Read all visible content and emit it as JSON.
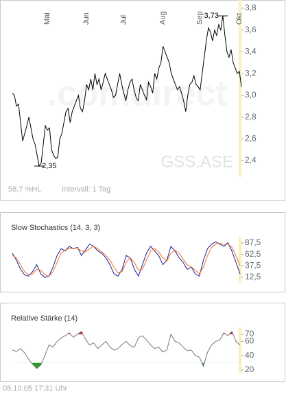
{
  "chart_data": [
    {
      "type": "line",
      "title": "GSS.ASE",
      "watermark": ".comdirect",
      "color": "#000000",
      "categories": [
        null,
        null,
        null,
        null,
        null,
        null,
        null,
        null,
        null,
        null,
        null,
        null,
        null,
        null,
        null,
        null,
        null,
        "Mai",
        null,
        null,
        null,
        null,
        null,
        null,
        null,
        null,
        null,
        null,
        null,
        null,
        null,
        null,
        null,
        null,
        null,
        null,
        "Jun",
        null,
        null,
        null,
        null,
        null,
        null,
        null,
        null,
        null,
        null,
        null,
        null,
        null,
        null,
        null,
        null,
        null,
        "Jul",
        null,
        null,
        null,
        null,
        null,
        null,
        null,
        null,
        null,
        null,
        null,
        null,
        null,
        null,
        null,
        null,
        null,
        null,
        "Aug",
        null,
        null,
        null,
        null,
        null,
        null,
        null,
        null,
        null,
        null,
        null,
        null,
        null,
        null,
        null,
        null,
        null,
        "Sep",
        null,
        null,
        null,
        null,
        null,
        null,
        null,
        null,
        null,
        null,
        null,
        null,
        null,
        null,
        null,
        null,
        null,
        null,
        "Okt",
        null
      ],
      "values": [
        3.02,
        3.0,
        2.9,
        2.92,
        2.75,
        2.58,
        2.65,
        2.72,
        2.8,
        2.7,
        2.6,
        2.55,
        2.45,
        2.35,
        2.38,
        2.55,
        2.72,
        2.68,
        2.7,
        2.5,
        2.45,
        2.42,
        2.43,
        2.6,
        2.65,
        2.75,
        2.85,
        2.88,
        2.75,
        2.85,
        2.9,
        2.95,
        3.0,
        2.88,
        2.85,
        2.95,
        3.1,
        3.05,
        3.15,
        3.05,
        3.2,
        3.1,
        3.15,
        3.05,
        3.12,
        3.2,
        3.15,
        3.1,
        3.05,
        2.98,
        3.0,
        3.1,
        3.2,
        3.1,
        3.02,
        2.95,
        3.05,
        3.12,
        3.15,
        3.05,
        2.98,
        2.95,
        3.1,
        3.05,
        3.0,
        2.96,
        3.12,
        3.08,
        3.02,
        3.2,
        3.15,
        3.25,
        3.3,
        3.45,
        3.4,
        3.35,
        3.3,
        3.2,
        3.15,
        3.1,
        3.05,
        3.08,
        3.02,
        2.95,
        2.85,
        3.0,
        3.1,
        3.12,
        3.18,
        3.1,
        3.08,
        3.05,
        3.2,
        3.35,
        3.5,
        3.62,
        3.58,
        3.5,
        3.6,
        3.55,
        3.65,
        3.6,
        3.73,
        3.55,
        3.4,
        3.35,
        3.42,
        3.3,
        3.25,
        3.2,
        3.22,
        3.08
      ],
      "annotations": [
        {
          "label": "3,73",
          "value": 3.73
        },
        {
          "label": "2,35",
          "value": 2.35
        }
      ],
      "ylim": [
        2.25,
        3.8
      ],
      "yticks": [
        {
          "value": 2.4,
          "label": "2,4"
        },
        {
          "value": 2.6,
          "label": "2,6"
        },
        {
          "value": 2.8,
          "label": "2,8"
        },
        {
          "value": 3.0,
          "label": "3,0"
        },
        {
          "value": 3.2,
          "label": "3,2"
        },
        {
          "value": 3.4,
          "label": "3,4"
        },
        {
          "value": 3.6,
          "label": "3,6"
        },
        {
          "value": 3.8,
          "label": "3,8"
        }
      ],
      "footer": [
        "58,7 %HL",
        "Intervall: 1 Tag"
      ],
      "grid": false
    },
    {
      "type": "line",
      "title": "Slow Stochastics (14, 3, 3)",
      "series": [
        {
          "color": "#1a1aa0",
          "values": [
            65,
            50,
            30,
            18,
            15,
            25,
            40,
            20,
            12,
            15,
            35,
            60,
            75,
            70,
            80,
            75,
            78,
            60,
            72,
            85,
            80,
            70,
            65,
            55,
            40,
            20,
            15,
            30,
            60,
            55,
            30,
            15,
            40,
            65,
            80,
            70,
            60,
            40,
            50,
            80,
            70,
            55,
            45,
            30,
            35,
            20,
            15,
            50,
            75,
            85,
            90,
            85,
            80,
            88,
            70,
            45,
            20
          ]
        },
        {
          "color": "#f07020",
          "values": [
            60,
            55,
            40,
            25,
            18,
            20,
            30,
            28,
            18,
            15,
            25,
            45,
            65,
            72,
            75,
            76,
            76,
            70,
            68,
            75,
            80,
            75,
            68,
            60,
            50,
            35,
            22,
            25,
            45,
            55,
            45,
            28,
            30,
            50,
            70,
            75,
            68,
            55,
            48,
            65,
            72,
            65,
            52,
            40,
            35,
            28,
            20,
            35,
            60,
            78,
            85,
            87,
            84,
            85,
            78,
            60,
            38
          ]
        }
      ],
      "ylim": [
        0,
        100
      ],
      "yticks": [
        {
          "value": 12.5,
          "label": "12,5"
        },
        {
          "value": 37.5,
          "label": "37,5"
        },
        {
          "value": 62.5,
          "label": "62,5"
        },
        {
          "value": 87.5,
          "label": "87,5"
        }
      ]
    },
    {
      "type": "rsi",
      "title": "Relative Stärke (14)",
      "color": "#777777",
      "thresholds": [
        30,
        70
      ],
      "fill_colors": [
        "#2a9a2a",
        "#d02020"
      ],
      "values": [
        48,
        46,
        50,
        44,
        35,
        28,
        22,
        27,
        40,
        55,
        52,
        60,
        65,
        68,
        72,
        66,
        70,
        74,
        63,
        55,
        58,
        50,
        55,
        60,
        52,
        48,
        50,
        56,
        60,
        54,
        52,
        65,
        68,
        62,
        55,
        50,
        52,
        45,
        48,
        70,
        60,
        58,
        52,
        47,
        48,
        40,
        38,
        25,
        45,
        55,
        60,
        62,
        72,
        68,
        74,
        60,
        55
      ],
      "ylim": [
        15,
        80
      ],
      "yticks": [
        20,
        40,
        60,
        70
      ]
    },
    {
      "type": "text",
      "timestamp": "05.10.05   17:31 Uhr"
    }
  ]
}
